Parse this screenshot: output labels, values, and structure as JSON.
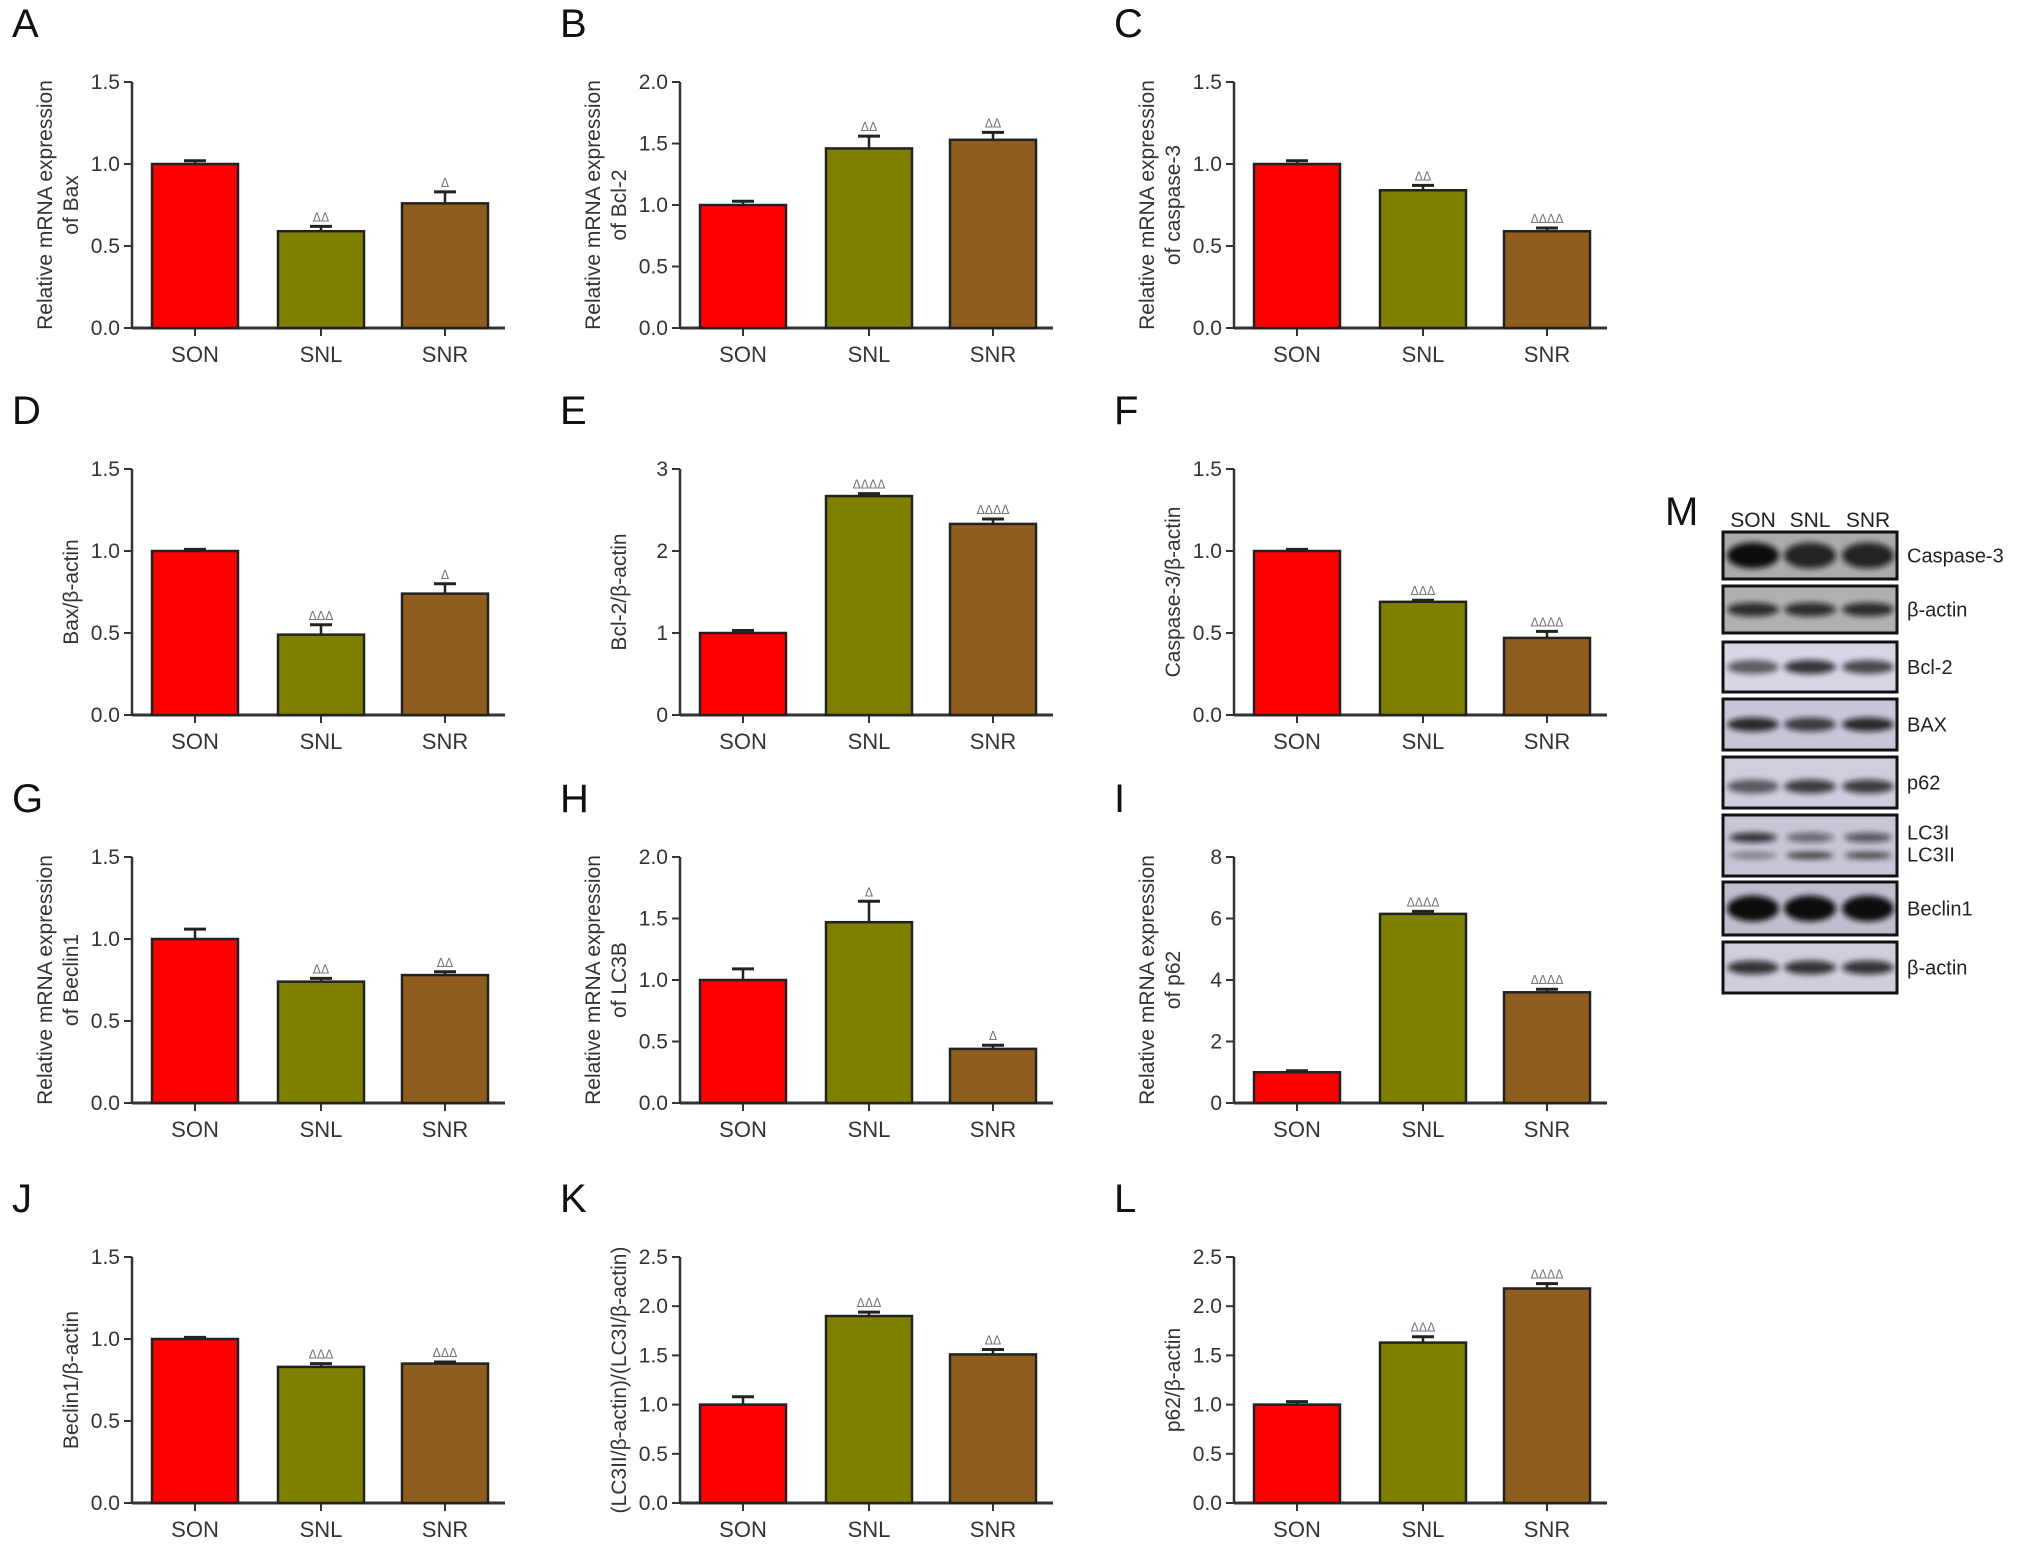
{
  "colors": {
    "SON": "#ff0000",
    "SNL": "#808000",
    "SNR": "#8f5e1f"
  },
  "chart_data": [
    {
      "type": "bar",
      "panel": "A",
      "ylabel": [
        "Relative mRNA expression",
        "of Bax"
      ],
      "categories": [
        "SON",
        "SNL",
        "SNR"
      ],
      "values": [
        1.0,
        0.59,
        0.76
      ],
      "errors": [
        0.02,
        0.03,
        0.07
      ],
      "significance": [
        "",
        "ΔΔ",
        "Δ"
      ],
      "ylim": [
        0,
        1.5
      ],
      "yticks": [
        "0.0",
        "0.5",
        "1.0",
        "1.5"
      ]
    },
    {
      "type": "bar",
      "panel": "B",
      "ylabel": [
        "Relative mRNA expression",
        "of Bcl-2"
      ],
      "categories": [
        "SON",
        "SNL",
        "SNR"
      ],
      "values": [
        1.0,
        1.46,
        1.53
      ],
      "errors": [
        0.03,
        0.1,
        0.06
      ],
      "significance": [
        "",
        "ΔΔ",
        "ΔΔ"
      ],
      "ylim": [
        0,
        2.0
      ],
      "yticks": [
        "0.0",
        "0.5",
        "1.0",
        "1.5",
        "2.0"
      ]
    },
    {
      "type": "bar",
      "panel": "C",
      "ylabel": [
        "Relative mRNA expression",
        "of caspase-3"
      ],
      "categories": [
        "SON",
        "SNL",
        "SNR"
      ],
      "values": [
        1.0,
        0.84,
        0.59
      ],
      "errors": [
        0.02,
        0.03,
        0.02
      ],
      "significance": [
        "",
        "ΔΔ",
        "ΔΔΔΔ"
      ],
      "ylim": [
        0,
        1.5
      ],
      "yticks": [
        "0.0",
        "0.5",
        "1.0",
        "1.5"
      ]
    },
    {
      "type": "bar",
      "panel": "D",
      "ylabel": [
        "Bax/β-actin"
      ],
      "categories": [
        "SON",
        "SNL",
        "SNR"
      ],
      "values": [
        1.0,
        0.49,
        0.74
      ],
      "errors": [
        0.01,
        0.06,
        0.06
      ],
      "significance": [
        "",
        "ΔΔΔ",
        "Δ"
      ],
      "ylim": [
        0,
        1.5
      ],
      "yticks": [
        "0.0",
        "0.5",
        "1.0",
        "1.5"
      ]
    },
    {
      "type": "bar",
      "panel": "E",
      "ylabel": [
        "Bcl-2/β-actin"
      ],
      "categories": [
        "SON",
        "SNL",
        "SNR"
      ],
      "values": [
        1.0,
        2.67,
        2.33
      ],
      "errors": [
        0.03,
        0.03,
        0.06
      ],
      "significance": [
        "",
        "ΔΔΔΔ",
        "ΔΔΔΔ"
      ],
      "ylim": [
        0,
        3
      ],
      "yticks": [
        "0",
        "1",
        "2",
        "3"
      ]
    },
    {
      "type": "bar",
      "panel": "F",
      "ylabel": [
        "Caspase-3/β-actin"
      ],
      "categories": [
        "SON",
        "SNL",
        "SNR"
      ],
      "values": [
        1.0,
        0.69,
        0.47
      ],
      "errors": [
        0.01,
        0.01,
        0.04
      ],
      "significance": [
        "",
        "ΔΔΔ",
        "ΔΔΔΔ"
      ],
      "ylim": [
        0,
        1.5
      ],
      "yticks": [
        "0.0",
        "0.5",
        "1.0",
        "1.5"
      ]
    },
    {
      "type": "bar",
      "panel": "G",
      "ylabel": [
        "Relative mRNA expression",
        "of Beclin1"
      ],
      "categories": [
        "SON",
        "SNL",
        "SNR"
      ],
      "values": [
        1.0,
        0.74,
        0.78
      ],
      "errors": [
        0.06,
        0.02,
        0.02
      ],
      "significance": [
        "",
        "ΔΔ",
        "ΔΔ"
      ],
      "ylim": [
        0,
        1.5
      ],
      "yticks": [
        "0.0",
        "0.5",
        "1.0",
        "1.5"
      ]
    },
    {
      "type": "bar",
      "panel": "H",
      "ylabel": [
        "Relative mRNA expression",
        "of LC3B"
      ],
      "categories": [
        "SON",
        "SNL",
        "SNR"
      ],
      "values": [
        1.0,
        1.47,
        0.44
      ],
      "errors": [
        0.09,
        0.17,
        0.03
      ],
      "significance": [
        "",
        "Δ",
        "Δ"
      ],
      "ylim": [
        0,
        2.0
      ],
      "yticks": [
        "0.0",
        "0.5",
        "1.0",
        "1.5",
        "2.0"
      ]
    },
    {
      "type": "bar",
      "panel": "I",
      "ylabel": [
        "Relative mRNA expression",
        "of p62"
      ],
      "categories": [
        "SON",
        "SNL",
        "SNR"
      ],
      "values": [
        1.0,
        6.15,
        3.6
      ],
      "errors": [
        0.05,
        0.08,
        0.1
      ],
      "significance": [
        "",
        "ΔΔΔΔ",
        "ΔΔΔΔ"
      ],
      "ylim": [
        0,
        8
      ],
      "yticks": [
        "0",
        "2",
        "4",
        "6",
        "8"
      ]
    },
    {
      "type": "bar",
      "panel": "J",
      "ylabel": [
        "Beclin1/β-actin"
      ],
      "categories": [
        "SON",
        "SNL",
        "SNR"
      ],
      "values": [
        1.0,
        0.83,
        0.85
      ],
      "errors": [
        0.01,
        0.02,
        0.01
      ],
      "significance": [
        "",
        "ΔΔΔ",
        "ΔΔΔ"
      ],
      "ylim": [
        0,
        1.5
      ],
      "yticks": [
        "0.0",
        "0.5",
        "1.0",
        "1.5"
      ]
    },
    {
      "type": "bar",
      "panel": "K",
      "ylabel": [
        "(LC3II/β-actin)/(LC3I/β-actin)"
      ],
      "categories": [
        "SON",
        "SNL",
        "SNR"
      ],
      "values": [
        1.0,
        1.9,
        1.51
      ],
      "errors": [
        0.08,
        0.04,
        0.05
      ],
      "significance": [
        "",
        "ΔΔΔ",
        "ΔΔ"
      ],
      "ylim": [
        0,
        2.5
      ],
      "yticks": [
        "0.0",
        "0.5",
        "1.0",
        "1.5",
        "2.0",
        "2.5"
      ]
    },
    {
      "type": "bar",
      "panel": "L",
      "ylabel": [
        "p62/β-actin"
      ],
      "categories": [
        "SON",
        "SNL",
        "SNR"
      ],
      "values": [
        1.0,
        1.63,
        2.18
      ],
      "errors": [
        0.03,
        0.06,
        0.05
      ],
      "significance": [
        "",
        "ΔΔΔ",
        "ΔΔΔΔ"
      ],
      "ylim": [
        0,
        2.5
      ],
      "yticks": [
        "0.0",
        "0.5",
        "1.0",
        "1.5",
        "2.0",
        "2.5"
      ]
    }
  ],
  "blot": {
    "panel": "M",
    "lanes": [
      "SON",
      "SNL",
      "SNR"
    ],
    "rows": [
      {
        "labels": [
          "Caspase-3"
        ],
        "intensity": [
          1.0,
          0.85,
          0.85
        ]
      },
      {
        "labels": [
          "β-actin"
        ],
        "intensity": [
          0.8,
          0.8,
          0.8
        ]
      },
      {
        "labels": [
          "Bcl-2"
        ],
        "intensity": [
          0.6,
          0.8,
          0.7
        ]
      },
      {
        "labels": [
          "BAX"
        ],
        "intensity": [
          0.85,
          0.75,
          0.85
        ]
      },
      {
        "labels": [
          "p62"
        ],
        "intensity": [
          0.6,
          0.75,
          0.75
        ]
      },
      {
        "labels": [
          "LC3I",
          "LC3II"
        ],
        "intensity": [
          0.8,
          0.5,
          0.6
        ]
      },
      {
        "labels": [
          "Beclin1"
        ],
        "intensity": [
          1.0,
          1.0,
          1.0
        ]
      },
      {
        "labels": [
          "β-actin"
        ],
        "intensity": [
          0.8,
          0.8,
          0.8
        ]
      }
    ]
  }
}
